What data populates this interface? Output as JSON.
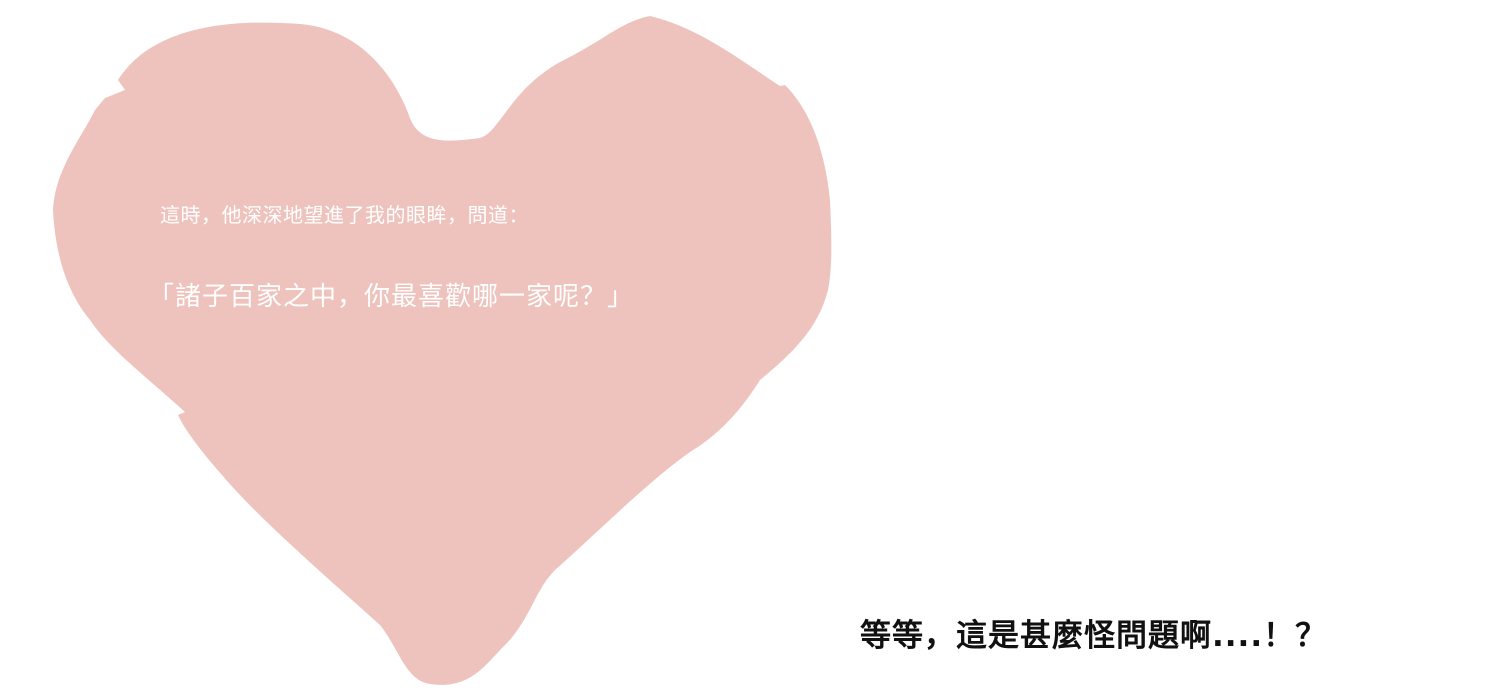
{
  "heart": {
    "color": "#eec3bd",
    "icon": "heart-icon"
  },
  "narration": "這時，他深深地望進了我的眼眸，問道：",
  "dialogue": "「諸子百家之中，你最喜歡哪一家呢？」",
  "reaction": "等等，這是甚麼怪問題啊....！？"
}
